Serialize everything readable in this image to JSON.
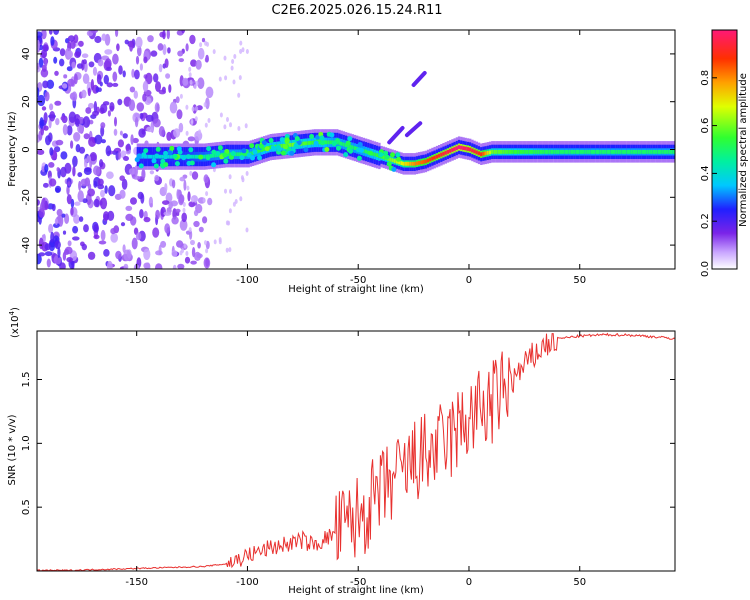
{
  "title": "C2E6.2025.026.15.24.R11",
  "chart_data": [
    {
      "type": "heatmap",
      "xlabel": "Height of straight line (km)",
      "ylabel": "Frequency (Hz)",
      "xlim": [
        -195,
        93
      ],
      "ylim": [
        -50,
        50
      ],
      "x_ticks": [
        "-150",
        "-100",
        "-50",
        "0",
        "50"
      ],
      "y_ticks": [
        "-40",
        "-20",
        "0",
        "20",
        "40"
      ],
      "colorbar": {
        "label": "Normalized spectral amplitude",
        "range": [
          0,
          1
        ],
        "ticks": [
          "0.0",
          "0.2",
          "0.4",
          "0.6",
          "0.8"
        ]
      },
      "ridge": {
        "x": [
          -150,
          -140,
          -130,
          -120,
          -110,
          -100,
          -90,
          -80,
          -70,
          -60,
          -50,
          -40,
          -30,
          -25,
          -20,
          -15,
          -10,
          -5,
          0,
          5,
          10,
          20,
          40,
          60,
          80,
          93
        ],
        "y": [
          -3,
          -3,
          -3,
          -3,
          -2,
          -2,
          1,
          2,
          3,
          3,
          0,
          -3,
          -6,
          -6,
          -5,
          -3,
          -1,
          1,
          0,
          -2,
          -1,
          -1,
          -1,
          -1,
          -1,
          -1
        ],
        "amplitude": [
          0.35,
          0.4,
          0.4,
          0.45,
          0.5,
          0.5,
          0.55,
          0.6,
          0.55,
          0.5,
          0.5,
          0.55,
          0.7,
          0.8,
          0.85,
          0.9,
          0.95,
          1.0,
          0.95,
          0.9,
          0.6,
          0.55,
          0.5,
          0.5,
          0.5,
          0.5
        ]
      }
    },
    {
      "type": "line",
      "xlabel": "Height of straight line (km)",
      "ylabel": "SNR (10 * v/v)",
      "y_multiplier": "(x10",
      "y_multiplier_exp": "4",
      "y_multiplier_close": ")",
      "xlim": [
        -195,
        93
      ],
      "ylim": [
        0,
        1.88
      ],
      "x_ticks": [
        "-150",
        "-100",
        "-50",
        "0",
        "50"
      ],
      "y_ticks": [
        "0.5",
        "1.0",
        "1.5"
      ],
      "series": [
        {
          "color": "#e8312f",
          "x": [
            -195,
            -180,
            -160,
            -140,
            -120,
            -110,
            -100,
            -95,
            -90,
            -85,
            -80,
            -75,
            -70,
            -65,
            -60,
            -55,
            -50,
            -45,
            -40,
            -35,
            -30,
            -25,
            -20,
            -15,
            -10,
            -5,
            0,
            5,
            10,
            15,
            20,
            25,
            30,
            35,
            40,
            50,
            60,
            70,
            80,
            93
          ],
          "y": [
            0.0,
            0.0,
            0.01,
            0.02,
            0.03,
            0.05,
            0.12,
            0.15,
            0.18,
            0.2,
            0.22,
            0.24,
            0.2,
            0.25,
            0.3,
            0.35,
            0.42,
            0.5,
            0.6,
            0.7,
            0.75,
            0.85,
            0.9,
            0.95,
            1.0,
            1.1,
            1.2,
            1.25,
            1.3,
            1.4,
            1.5,
            1.6,
            1.7,
            1.78,
            1.82,
            1.84,
            1.85,
            1.85,
            1.84,
            1.82
          ]
        }
      ]
    }
  ]
}
